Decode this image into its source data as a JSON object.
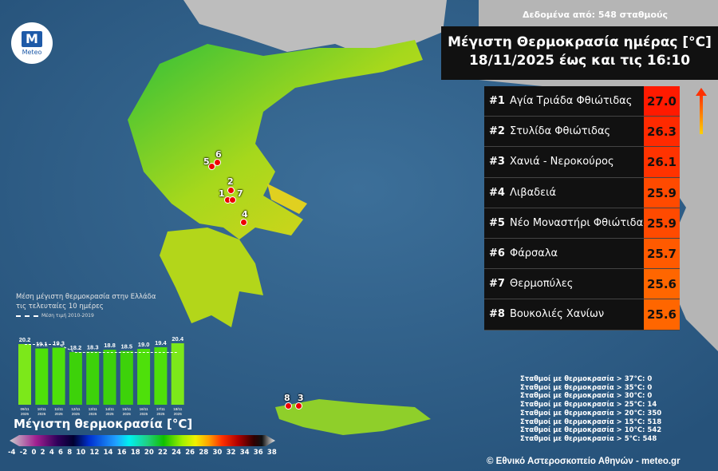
{
  "logo": {
    "text": "Meteo"
  },
  "stations_note": "Δεδομένα από: 548 σταθμούς",
  "header": {
    "line1": "Μέγιστη Θερμοκρασία ημέρας [°C]",
    "line2": "18/11/2025 έως και τις 16:10"
  },
  "ranking": [
    {
      "rank": "#1",
      "name": "Αγία Τριάδα Φθιώτιδας",
      "value": "27.0",
      "color": "#ff1a00"
    },
    {
      "rank": "#2",
      "name": "Στυλίδα Φθιώτιδας",
      "value": "26.3",
      "color": "#ff2a00"
    },
    {
      "rank": "#3",
      "name": "Χανιά - Νεροκούρος",
      "value": "26.1",
      "color": "#ff3300"
    },
    {
      "rank": "#4",
      "name": "Λιβαδειά",
      "value": "25.9",
      "color": "#ff4a00"
    },
    {
      "rank": "#5",
      "name": "Νέο Μοναστήρι Φθιώτιδας",
      "value": "25.9",
      "color": "#ff4a00"
    },
    {
      "rank": "#6",
      "name": "Φάρσαλα",
      "value": "25.7",
      "color": "#ff5a00"
    },
    {
      "rank": "#7",
      "name": "Θερμοπύλες",
      "value": "25.6",
      "color": "#ff6600"
    },
    {
      "rank": "#8",
      "name": "Βουκολιές Χανίων",
      "value": "25.6",
      "color": "#ff6600"
    }
  ],
  "markers": [
    "1",
    "2",
    "3",
    "4",
    "5",
    "6",
    "7",
    "8"
  ],
  "mini_chart": {
    "title_line1": "Μέση μέγιστη θερμοκρασία στην Ελλάδα",
    "title_line2": "τις τελευταίες 10 ημέρες",
    "dashed_legend": "Μέση τιμή 2010-2019",
    "chart_data": {
      "type": "bar",
      "categories": [
        "09/11 2025",
        "10/11 2025",
        "11/11 2025",
        "12/11 2025",
        "13/11 2025",
        "14/11 2025",
        "15/11 2025",
        "16/11 2025",
        "17/11 2025",
        "18/11 2025"
      ],
      "values": [
        20.2,
        19.1,
        19.3,
        18.2,
        18.3,
        18.8,
        18.5,
        19.0,
        19.4,
        20.4
      ],
      "labels": [
        "20.2",
        "19.1",
        "19.3",
        "18.2",
        "18.3",
        "18.8",
        "18.5",
        "19.0",
        "19.4",
        "20.4"
      ],
      "series": [
        {
          "name": "Μέση τιμή 2010-2019",
          "type": "line",
          "values": [
            20.1,
            20.1,
            20.1,
            18.1,
            18.1,
            18.1,
            18.1,
            18.1,
            18.1,
            18.1
          ]
        }
      ]
    }
  },
  "colorbar": {
    "title": "Μέγιστη θερμοκρασία [°C]",
    "ticks": [
      "-4",
      "-2",
      "0",
      "2",
      "4",
      "6",
      "8",
      "10",
      "12",
      "14",
      "16",
      "18",
      "20",
      "22",
      "24",
      "26",
      "28",
      "30",
      "32",
      "34",
      "36",
      "38"
    ]
  },
  "counts": [
    "Σταθμοί με θερμοκρασία > 37°C: 0",
    "Σταθμοί με θερμοκρασία > 35°C: 0",
    "Σταθμοί με θερμοκρασία > 30°C: 0",
    "Σταθμοί με θερμοκρασία > 25°C: 14",
    "Σταθμοί με θερμοκρασία > 20°C: 350",
    "Σταθμοί με θερμοκρασία > 15°C: 518",
    "Σταθμοί με θερμοκρασία > 10°C: 542",
    "Σταθμοί με θερμοκρασία > 5°C: 548"
  ],
  "copyright": "© Εθνικό Αστεροσκοπείο Αθηνών - meteo.gr"
}
